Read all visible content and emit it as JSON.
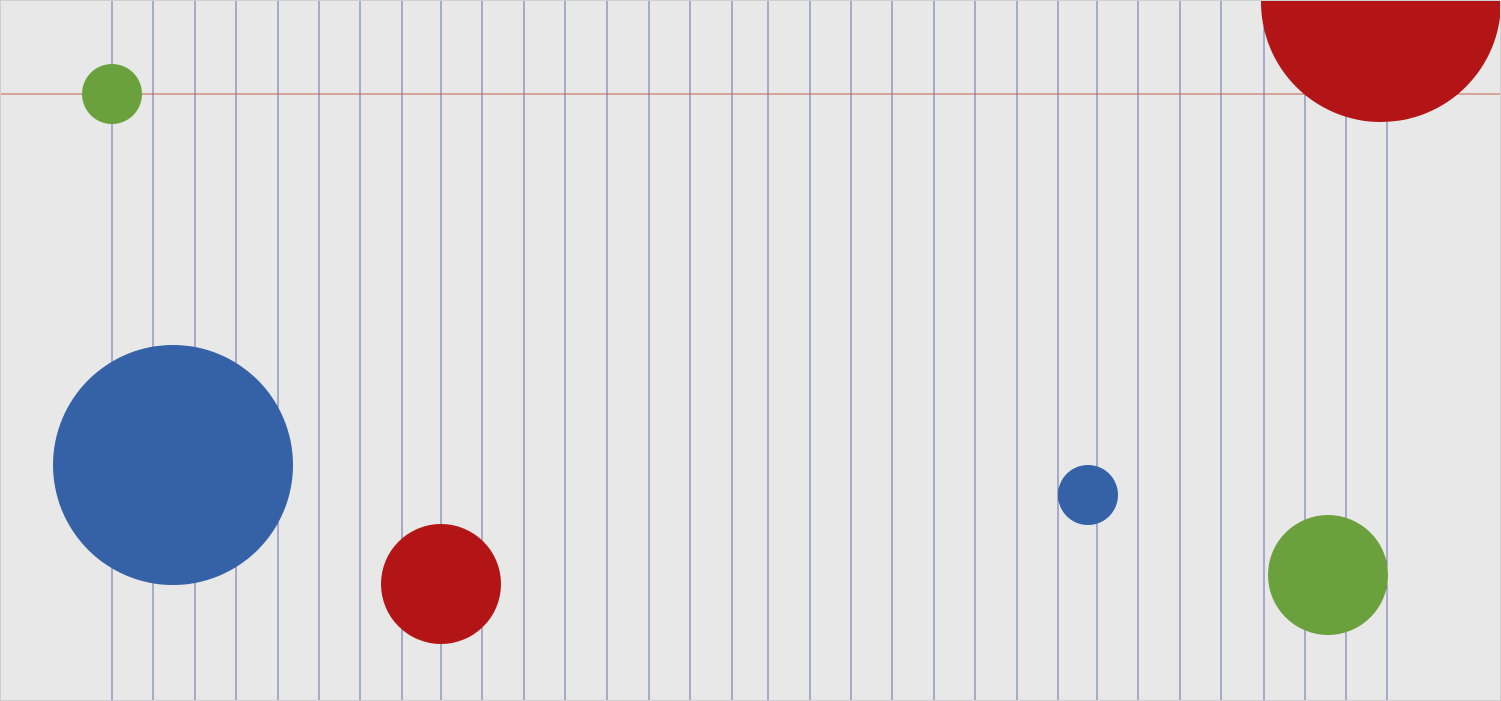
{
  "palette": {
    "background": "#e8e8e8",
    "grid_line": "#6a6aa8",
    "horizontal_line": "#c0604a",
    "red": "#b31516",
    "green": "#6ba13d",
    "blue": "#3561a6"
  },
  "shapes": [
    {
      "name": "small-green-circle-top-left",
      "color": "green"
    },
    {
      "name": "large-blue-circle-left",
      "color": "blue"
    },
    {
      "name": "red-circle-bottom-center-left",
      "color": "red"
    },
    {
      "name": "small-blue-circle-right",
      "color": "blue"
    },
    {
      "name": "green-circle-bottom-right",
      "color": "green"
    },
    {
      "name": "large-red-circle-top-right",
      "color": "red"
    }
  ]
}
